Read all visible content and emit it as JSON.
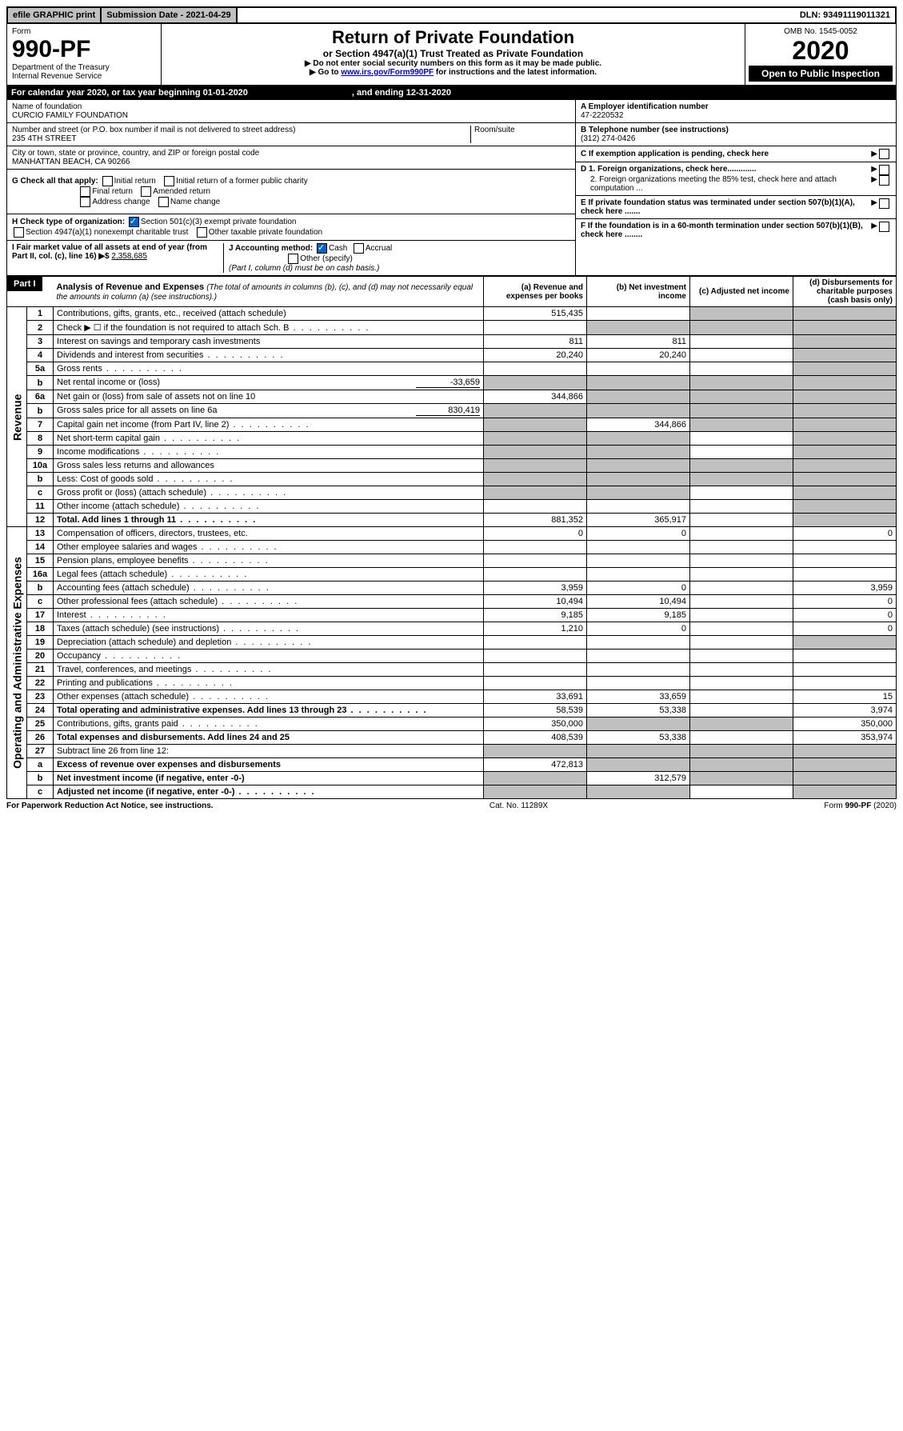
{
  "topbar": {
    "efile": "efile GRAPHIC print",
    "subdate": "Submission Date - 2021-04-29",
    "dln": "DLN: 93491119011321"
  },
  "header": {
    "form_label": "Form",
    "form_no": "990-PF",
    "dept": "Department of the Treasury",
    "irs": "Internal Revenue Service",
    "title": "Return of Private Foundation",
    "subtitle": "or Section 4947(a)(1) Trust Treated as Private Foundation",
    "note1": "▶ Do not enter social security numbers on this form as it may be made public.",
    "note2_pre": "▶ Go to ",
    "note2_link": "www.irs.gov/Form990PF",
    "note2_post": " for instructions and the latest information.",
    "omb": "OMB No. 1545-0052",
    "year": "2020",
    "open": "Open to Public Inspection"
  },
  "calyear": {
    "text": "For calendar year 2020, or tax year beginning 01-01-2020",
    "ending": ", and ending 12-31-2020"
  },
  "org": {
    "name_label": "Name of foundation",
    "name": "CURCIO FAMILY FOUNDATION",
    "addr_label": "Number and street (or P.O. box number if mail is not delivered to street address)",
    "addr": "235 4TH STREET",
    "room_label": "Room/suite",
    "city_label": "City or town, state or province, country, and ZIP or foreign postal code",
    "city": "MANHATTAN BEACH, CA  90266",
    "ein_label": "A Employer identification number",
    "ein": "47-2220532",
    "phone_label": "B Telephone number (see instructions)",
    "phone": "(312) 274-0426",
    "c_label": "C If exemption application is pending, check here",
    "d1": "D 1. Foreign organizations, check here.............",
    "d2": "2. Foreign organizations meeting the 85% test, check here and attach computation ...",
    "e": "E  If private foundation status was terminated under section 507(b)(1)(A), check here .......",
    "f": "F  If the foundation is in a 60-month termination under section 507(b)(1)(B), check here ........"
  },
  "check": {
    "g_label": "G Check all that apply:",
    "g1": "Initial return",
    "g2": "Initial return of a former public charity",
    "g3": "Final return",
    "g4": "Amended return",
    "g5": "Address change",
    "g6": "Name change",
    "h_label": "H Check type of organization:",
    "h1": "Section 501(c)(3) exempt private foundation",
    "h2": "Section 4947(a)(1) nonexempt charitable trust",
    "h3": "Other taxable private foundation",
    "i_label": "I Fair market value of all assets at end of year (from Part II, col. (c), line 16) ▶$",
    "i_val": "2,358,685",
    "j_label": "J Accounting method:",
    "j1": "Cash",
    "j2": "Accrual",
    "j3": "Other (specify)",
    "j_note": "(Part I, column (d) must be on cash basis.)"
  },
  "part1": {
    "label": "Part I",
    "title": "Analysis of Revenue and Expenses",
    "title_note": "(The total of amounts in columns (b), (c), and (d) may not necessarily equal the amounts in column (a) (see instructions).)",
    "col_a": "(a)   Revenue and expenses per books",
    "col_b": "(b)  Net investment income",
    "col_c": "(c)  Adjusted net income",
    "col_d": "(d)  Disbursements for charitable purposes (cash basis only)",
    "revenue_label": "Revenue",
    "expenses_label": "Operating and Administrative Expenses"
  },
  "rows": [
    {
      "n": "1",
      "t": "Contributions, gifts, grants, etc., received (attach schedule)",
      "a": "515,435",
      "b": "",
      "c": "g",
      "d": "g"
    },
    {
      "n": "2",
      "t": "Check ▶ ☐ if the foundation is not required to attach Sch. B",
      "a": "",
      "b": "g",
      "c": "g",
      "d": "g",
      "nobold": true,
      "dots": true
    },
    {
      "n": "3",
      "t": "Interest on savings and temporary cash investments",
      "a": "811",
      "b": "811",
      "c": "",
      "d": "g"
    },
    {
      "n": "4",
      "t": "Dividends and interest from securities",
      "a": "20,240",
      "b": "20,240",
      "c": "",
      "d": "g",
      "dots": true
    },
    {
      "n": "5a",
      "t": "Gross rents",
      "a": "",
      "b": "",
      "c": "",
      "d": "g",
      "dots": true
    },
    {
      "n": "b",
      "t": "Net rental income or (loss)",
      "inline": "-33,659",
      "a": "g",
      "b": "g",
      "c": "g",
      "d": "g"
    },
    {
      "n": "6a",
      "t": "Net gain or (loss) from sale of assets not on line 10",
      "a": "344,866",
      "b": "g",
      "c": "g",
      "d": "g"
    },
    {
      "n": "b",
      "t": "Gross sales price for all assets on line 6a",
      "inline": "830,419",
      "a": "g",
      "b": "g",
      "c": "g",
      "d": "g"
    },
    {
      "n": "7",
      "t": "Capital gain net income (from Part IV, line 2)",
      "a": "g",
      "b": "344,866",
      "c": "g",
      "d": "g",
      "dots": true
    },
    {
      "n": "8",
      "t": "Net short-term capital gain",
      "a": "g",
      "b": "g",
      "c": "",
      "d": "g",
      "dots": true
    },
    {
      "n": "9",
      "t": "Income modifications",
      "a": "g",
      "b": "g",
      "c": "",
      "d": "g",
      "dots": true
    },
    {
      "n": "10a",
      "t": "Gross sales less returns and allowances",
      "a": "g",
      "b": "g",
      "c": "g",
      "d": "g"
    },
    {
      "n": "b",
      "t": "Less: Cost of goods sold",
      "a": "g",
      "b": "g",
      "c": "g",
      "d": "g",
      "dots": true
    },
    {
      "n": "c",
      "t": "Gross profit or (loss) (attach schedule)",
      "a": "g",
      "b": "g",
      "c": "",
      "d": "g",
      "dots": true
    },
    {
      "n": "11",
      "t": "Other income (attach schedule)",
      "a": "",
      "b": "",
      "c": "",
      "d": "g",
      "dots": true
    },
    {
      "n": "12",
      "t": "Total. Add lines 1 through 11",
      "a": "881,352",
      "b": "365,917",
      "c": "",
      "d": "g",
      "bold": true,
      "dots": true
    }
  ],
  "exp_rows": [
    {
      "n": "13",
      "t": "Compensation of officers, directors, trustees, etc.",
      "a": "0",
      "b": "0",
      "c": "",
      "d": "0"
    },
    {
      "n": "14",
      "t": "Other employee salaries and wages",
      "a": "",
      "b": "",
      "c": "",
      "d": "",
      "dots": true
    },
    {
      "n": "15",
      "t": "Pension plans, employee benefits",
      "a": "",
      "b": "",
      "c": "",
      "d": "",
      "dots": true
    },
    {
      "n": "16a",
      "t": "Legal fees (attach schedule)",
      "a": "",
      "b": "",
      "c": "",
      "d": "",
      "dots": true
    },
    {
      "n": "b",
      "t": "Accounting fees (attach schedule)",
      "a": "3,959",
      "b": "0",
      "c": "",
      "d": "3,959",
      "dots": true
    },
    {
      "n": "c",
      "t": "Other professional fees (attach schedule)",
      "a": "10,494",
      "b": "10,494",
      "c": "",
      "d": "0",
      "dots": true
    },
    {
      "n": "17",
      "t": "Interest",
      "a": "9,185",
      "b": "9,185",
      "c": "",
      "d": "0",
      "dots": true
    },
    {
      "n": "18",
      "t": "Taxes (attach schedule) (see instructions)",
      "a": "1,210",
      "b": "0",
      "c": "",
      "d": "0",
      "dots": true
    },
    {
      "n": "19",
      "t": "Depreciation (attach schedule) and depletion",
      "a": "",
      "b": "",
      "c": "",
      "d": "g",
      "dots": true
    },
    {
      "n": "20",
      "t": "Occupancy",
      "a": "",
      "b": "",
      "c": "",
      "d": "",
      "dots": true
    },
    {
      "n": "21",
      "t": "Travel, conferences, and meetings",
      "a": "",
      "b": "",
      "c": "",
      "d": "",
      "dots": true
    },
    {
      "n": "22",
      "t": "Printing and publications",
      "a": "",
      "b": "",
      "c": "",
      "d": "",
      "dots": true
    },
    {
      "n": "23",
      "t": "Other expenses (attach schedule)",
      "a": "33,691",
      "b": "33,659",
      "c": "",
      "d": "15",
      "dots": true
    },
    {
      "n": "24",
      "t": "Total operating and administrative expenses. Add lines 13 through 23",
      "a": "58,539",
      "b": "53,338",
      "c": "",
      "d": "3,974",
      "bold": true,
      "dots": true
    },
    {
      "n": "25",
      "t": "Contributions, gifts, grants paid",
      "a": "350,000",
      "b": "g",
      "c": "g",
      "d": "350,000",
      "dots": true
    },
    {
      "n": "26",
      "t": "Total expenses and disbursements. Add lines 24 and 25",
      "a": "408,539",
      "b": "53,338",
      "c": "",
      "d": "353,974",
      "bold": true
    },
    {
      "n": "27",
      "t": "Subtract line 26 from line 12:",
      "a": "g",
      "b": "g",
      "c": "g",
      "d": "g"
    },
    {
      "n": "a",
      "t": "Excess of revenue over expenses and disbursements",
      "a": "472,813",
      "b": "g",
      "c": "g",
      "d": "g",
      "bold": true
    },
    {
      "n": "b",
      "t": "Net investment income (if negative, enter -0-)",
      "a": "g",
      "b": "312,579",
      "c": "g",
      "d": "g",
      "bold": true
    },
    {
      "n": "c",
      "t": "Adjusted net income (if negative, enter -0-)",
      "a": "g",
      "b": "g",
      "c": "",
      "d": "g",
      "bold": true,
      "dots": true
    }
  ],
  "footer": {
    "left": "For Paperwork Reduction Act Notice, see instructions.",
    "mid": "Cat. No. 11289X",
    "right": "Form 990-PF (2020)"
  }
}
